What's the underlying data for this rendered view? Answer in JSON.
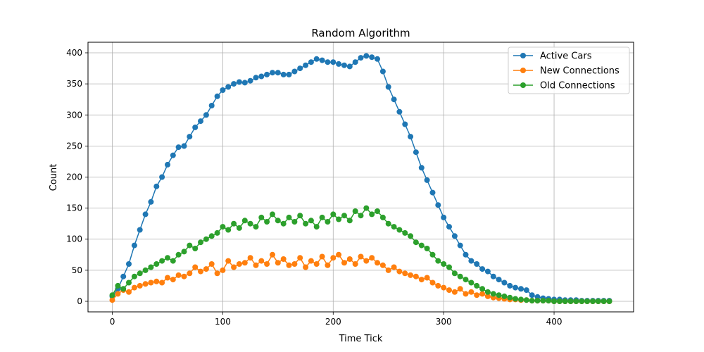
{
  "chart_data": {
    "type": "line",
    "title": "Random Algorithm",
    "xlabel": "Time Tick",
    "ylabel": "Count",
    "xlim": [
      -22,
      472
    ],
    "ylim": [
      -17,
      417
    ],
    "x_ticks": [
      0,
      100,
      200,
      300,
      400
    ],
    "y_ticks": [
      0,
      50,
      100,
      150,
      200,
      250,
      300,
      350,
      400
    ],
    "grid": true,
    "legend": "top-right",
    "series": [
      {
        "name": "Active Cars",
        "color": "#1f77b4",
        "x": [
          0,
          5,
          10,
          15,
          20,
          25,
          30,
          35,
          40,
          45,
          50,
          55,
          60,
          65,
          70,
          75,
          80,
          85,
          90,
          95,
          100,
          105,
          110,
          115,
          120,
          125,
          130,
          135,
          140,
          145,
          150,
          155,
          160,
          165,
          170,
          175,
          180,
          185,
          190,
          195,
          200,
          205,
          210,
          215,
          220,
          225,
          230,
          235,
          240,
          245,
          250,
          255,
          260,
          265,
          270,
          275,
          280,
          285,
          290,
          295,
          300,
          305,
          310,
          315,
          320,
          325,
          330,
          335,
          340,
          345,
          350,
          355,
          360,
          365,
          370,
          375,
          380,
          385,
          390,
          395,
          400,
          405,
          410,
          415,
          420,
          425,
          430,
          435,
          440,
          445,
          450
        ],
        "values": [
          8,
          20,
          40,
          60,
          90,
          115,
          140,
          160,
          185,
          200,
          220,
          235,
          248,
          250,
          265,
          280,
          290,
          300,
          315,
          330,
          340,
          345,
          350,
          353,
          352,
          355,
          360,
          362,
          365,
          368,
          368,
          365,
          365,
          370,
          375,
          380,
          385,
          390,
          388,
          385,
          385,
          382,
          380,
          378,
          385,
          392,
          395,
          393,
          390,
          370,
          345,
          325,
          305,
          285,
          265,
          240,
          215,
          195,
          175,
          155,
          135,
          120,
          105,
          90,
          75,
          65,
          60,
          52,
          48,
          40,
          35,
          30,
          25,
          22,
          20,
          18,
          10,
          7,
          5,
          4,
          3,
          3,
          2,
          2,
          2,
          1,
          1,
          1,
          1,
          1,
          1
        ]
      },
      {
        "name": "New Connections",
        "color": "#ff7f0e",
        "x": [
          0,
          5,
          10,
          15,
          20,
          25,
          30,
          35,
          40,
          45,
          50,
          55,
          60,
          65,
          70,
          75,
          80,
          85,
          90,
          95,
          100,
          105,
          110,
          115,
          120,
          125,
          130,
          135,
          140,
          145,
          150,
          155,
          160,
          165,
          170,
          175,
          180,
          185,
          190,
          195,
          200,
          205,
          210,
          215,
          220,
          225,
          230,
          235,
          240,
          245,
          250,
          255,
          260,
          265,
          270,
          275,
          280,
          285,
          290,
          295,
          300,
          305,
          310,
          315,
          320,
          325,
          330,
          335,
          340,
          345,
          350,
          355,
          360,
          365,
          370,
          375,
          380,
          385,
          390,
          395,
          400,
          405,
          410,
          415,
          420,
          425,
          430,
          435,
          440,
          445,
          450
        ],
        "values": [
          2,
          12,
          18,
          15,
          22,
          25,
          28,
          30,
          32,
          30,
          38,
          35,
          42,
          40,
          45,
          55,
          48,
          52,
          60,
          45,
          50,
          65,
          55,
          60,
          62,
          70,
          58,
          65,
          60,
          75,
          62,
          68,
          58,
          60,
          70,
          55,
          65,
          60,
          72,
          58,
          70,
          75,
          62,
          68,
          60,
          72,
          65,
          70,
          62,
          58,
          50,
          55,
          48,
          45,
          42,
          40,
          35,
          38,
          30,
          25,
          22,
          18,
          15,
          20,
          12,
          15,
          10,
          12,
          8,
          6,
          5,
          4,
          3,
          3,
          2,
          2,
          1,
          1,
          1,
          1,
          0,
          0,
          0,
          0,
          0,
          0,
          0,
          0,
          0,
          0,
          0
        ]
      },
      {
        "name": "Old Connections",
        "color": "#2ca02c",
        "x": [
          0,
          5,
          10,
          15,
          20,
          25,
          30,
          35,
          40,
          45,
          50,
          55,
          60,
          65,
          70,
          75,
          80,
          85,
          90,
          95,
          100,
          105,
          110,
          115,
          120,
          125,
          130,
          135,
          140,
          145,
          150,
          155,
          160,
          165,
          170,
          175,
          180,
          185,
          190,
          195,
          200,
          205,
          210,
          215,
          220,
          225,
          230,
          235,
          240,
          245,
          250,
          255,
          260,
          265,
          270,
          275,
          280,
          285,
          290,
          295,
          300,
          305,
          310,
          315,
          320,
          325,
          330,
          335,
          340,
          345,
          350,
          355,
          360,
          365,
          370,
          375,
          380,
          385,
          390,
          395,
          400,
          405,
          410,
          415,
          420,
          425,
          430,
          435,
          440,
          445,
          450
        ],
        "values": [
          10,
          25,
          20,
          30,
          40,
          45,
          50,
          55,
          60,
          65,
          70,
          65,
          75,
          80,
          90,
          85,
          95,
          100,
          105,
          110,
          120,
          115,
          125,
          118,
          130,
          125,
          120,
          135,
          128,
          140,
          130,
          125,
          135,
          128,
          138,
          125,
          130,
          120,
          135,
          128,
          140,
          132,
          138,
          130,
          145,
          138,
          150,
          140,
          145,
          135,
          125,
          120,
          115,
          110,
          105,
          95,
          90,
          85,
          75,
          65,
          60,
          55,
          45,
          40,
          35,
          30,
          25,
          20,
          15,
          12,
          10,
          8,
          6,
          4,
          3,
          2,
          1,
          1,
          1,
          1,
          0,
          0,
          0,
          0,
          0,
          0,
          0,
          0,
          0,
          0,
          0
        ]
      }
    ]
  }
}
